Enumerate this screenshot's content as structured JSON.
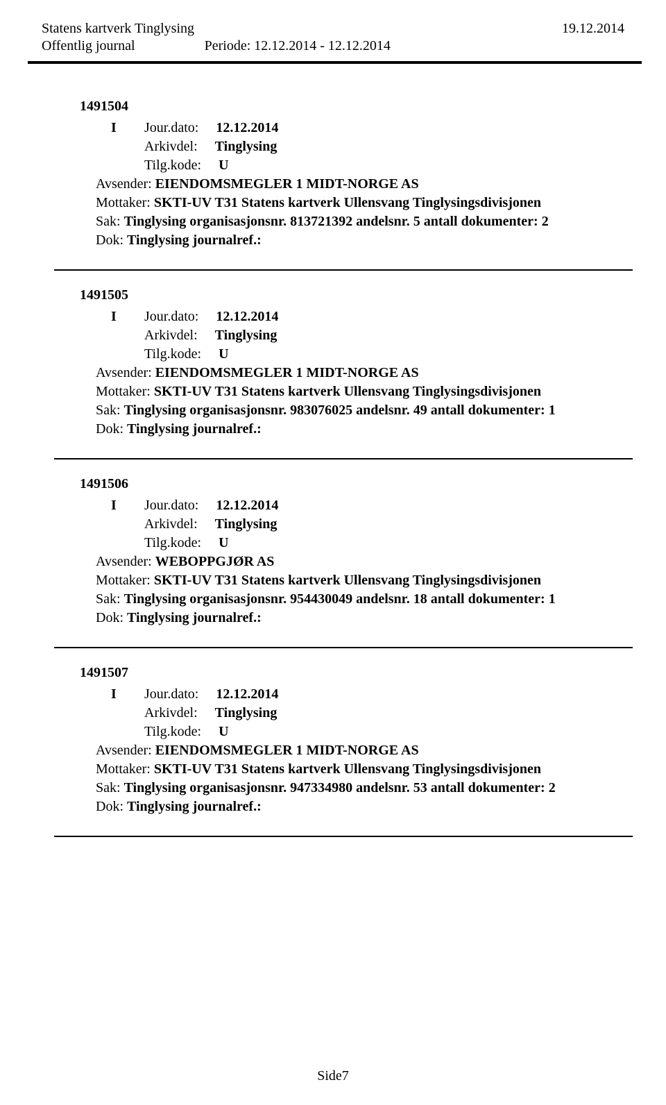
{
  "header": {
    "title": "Statens kartverk Tinglysing",
    "date": "19.12.2014",
    "subtitle": "Offentlig journal",
    "period_label": "Periode:",
    "period_value": "12.12.2014 - 12.12.2014"
  },
  "entries": [
    {
      "id": "1491504",
      "type": "I",
      "jourdato_label": "Jour.dato:",
      "jourdato_value": "12.12.2014",
      "arkivdel_label": "Arkivdel:",
      "arkivdel_value": "Tinglysing",
      "tilgkode_label": "Tilg.kode:",
      "tilgkode_value": "U",
      "avsender_label": "Avsender:",
      "avsender_value": "EIENDOMSMEGLER 1 MIDT-NORGE AS",
      "mottaker_label": "Mottaker:",
      "mottaker_value": "SKTI-UV T31 Statens kartverk Ullensvang Tinglysingsdivisjonen",
      "sak_label": "Sak:",
      "sak_value": "Tinglysing organisasjonsnr. 813721392 andelsnr. 5 antall dokumenter: 2",
      "dok_label": "Dok:",
      "dok_value": "Tinglysing journalref.:"
    },
    {
      "id": "1491505",
      "type": "I",
      "jourdato_label": "Jour.dato:",
      "jourdato_value": "12.12.2014",
      "arkivdel_label": "Arkivdel:",
      "arkivdel_value": "Tinglysing",
      "tilgkode_label": "Tilg.kode:",
      "tilgkode_value": "U",
      "avsender_label": "Avsender:",
      "avsender_value": "EIENDOMSMEGLER 1 MIDT-NORGE AS",
      "mottaker_label": "Mottaker:",
      "mottaker_value": "SKTI-UV T31 Statens kartverk Ullensvang Tinglysingsdivisjonen",
      "sak_label": "Sak:",
      "sak_value": "Tinglysing organisasjonsnr. 983076025 andelsnr. 49 antall dokumenter: 1",
      "dok_label": "Dok:",
      "dok_value": "Tinglysing journalref.:"
    },
    {
      "id": "1491506",
      "type": "I",
      "jourdato_label": "Jour.dato:",
      "jourdato_value": "12.12.2014",
      "arkivdel_label": "Arkivdel:",
      "arkivdel_value": "Tinglysing",
      "tilgkode_label": "Tilg.kode:",
      "tilgkode_value": "U",
      "avsender_label": "Avsender:",
      "avsender_value": "WEBOPPGJØR AS",
      "mottaker_label": "Mottaker:",
      "mottaker_value": "SKTI-UV T31 Statens kartverk Ullensvang Tinglysingsdivisjonen",
      "sak_label": "Sak:",
      "sak_value": "Tinglysing organisasjonsnr. 954430049 andelsnr. 18 antall dokumenter: 1",
      "dok_label": "Dok:",
      "dok_value": "Tinglysing journalref.:"
    },
    {
      "id": "1491507",
      "type": "I",
      "jourdato_label": "Jour.dato:",
      "jourdato_value": "12.12.2014",
      "arkivdel_label": "Arkivdel:",
      "arkivdel_value": "Tinglysing",
      "tilgkode_label": "Tilg.kode:",
      "tilgkode_value": "U",
      "avsender_label": "Avsender:",
      "avsender_value": "EIENDOMSMEGLER 1 MIDT-NORGE AS",
      "mottaker_label": "Mottaker:",
      "mottaker_value": "SKTI-UV T31 Statens kartverk Ullensvang Tinglysingsdivisjonen",
      "sak_label": "Sak:",
      "sak_value": "Tinglysing organisasjonsnr. 947334980 andelsnr. 53 antall dokumenter: 2",
      "dok_label": "Dok:",
      "dok_value": "Tinglysing journalref.:"
    }
  ],
  "footer": {
    "page": "Side7"
  }
}
